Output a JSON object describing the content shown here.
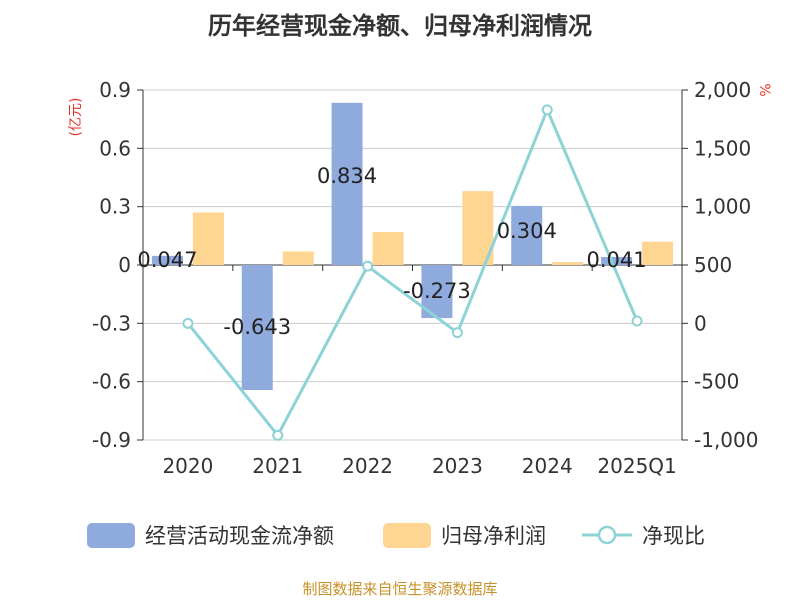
{
  "chart_data": {
    "type": "bar",
    "title": "历年经营现金净额、归母净利润情况",
    "categories": [
      "2020",
      "2021",
      "2022",
      "2023",
      "2024",
      "2025Q1"
    ],
    "left_axis": {
      "unit": "(亿元)",
      "ylim": [
        -0.9,
        0.9
      ],
      "ticks": [
        0.9,
        0.6,
        0.3,
        0,
        -0.3,
        -0.6,
        -0.9
      ],
      "tick_labels": [
        "0.9",
        "0.6",
        "0.3",
        "0",
        "-0.3",
        "-0.6",
        "-0.9"
      ]
    },
    "right_axis": {
      "unit": "%",
      "ylim": [
        -1000,
        2000
      ],
      "ticks": [
        2000,
        1500,
        1000,
        500,
        0,
        -500,
        -1000
      ],
      "tick_labels": [
        "2,000",
        "1,500",
        "1,000",
        "500",
        "0",
        "-500",
        "-1,000"
      ]
    },
    "series": [
      {
        "name": "经营活动现金流净额",
        "type": "bar",
        "axis": "left",
        "color": "#8faadc",
        "values": [
          0.047,
          -0.643,
          0.834,
          -0.273,
          0.304,
          0.041
        ],
        "labels": [
          "0.047",
          "-0.643",
          "0.834",
          "-0.273",
          "0.304",
          "0.041"
        ]
      },
      {
        "name": "归母净利润",
        "type": "bar",
        "axis": "left",
        "color": "#ffd592",
        "values": [
          0.27,
          0.07,
          0.17,
          0.38,
          0.015,
          0.12
        ]
      },
      {
        "name": "净现比",
        "type": "line",
        "axis": "right",
        "color": "#8dd3d6",
        "values": [
          0,
          -960,
          490,
          -80,
          1830,
          20
        ]
      }
    ],
    "legend_position": "bottom",
    "grid": true
  },
  "footer": {
    "source": "制图数据来自恒生聚源数据库"
  }
}
